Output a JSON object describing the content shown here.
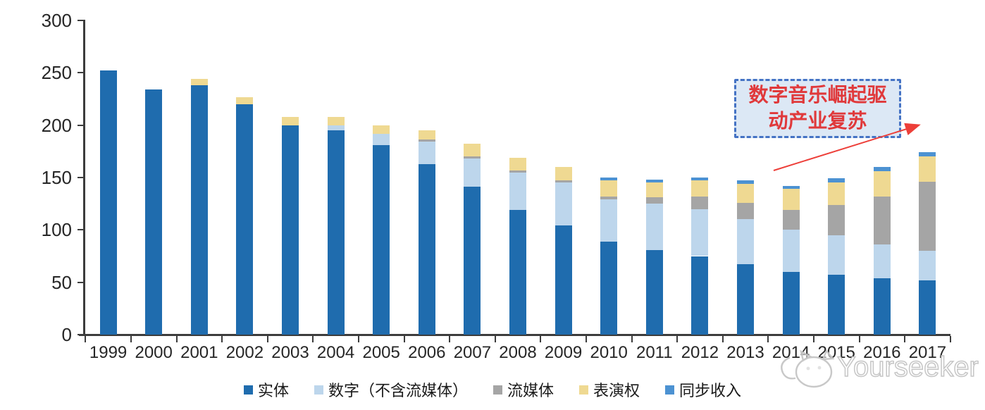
{
  "chart_data": {
    "type": "bar",
    "stacked": true,
    "title": "",
    "xlabel": "",
    "ylabel": "",
    "categories": [
      "1999",
      "2000",
      "2001",
      "2002",
      "2003",
      "2004",
      "2005",
      "2006",
      "2007",
      "2008",
      "2009",
      "2010",
      "2011",
      "2012",
      "2013",
      "2014",
      "2015",
      "2016",
      "2017"
    ],
    "series": [
      {
        "name": "实体",
        "color": "#1F6CAE",
        "values": [
          252,
          234,
          238,
          220,
          200,
          195,
          181,
          163,
          141,
          119,
          104,
          89,
          81,
          75,
          67,
          60,
          57,
          54,
          52
        ]
      },
      {
        "name": "数字（不含流媒体）",
        "color": "#BDD6EC",
        "values": [
          0,
          0,
          0,
          0,
          0,
          5,
          11,
          21,
          27,
          36,
          41,
          40,
          44,
          45,
          43,
          40,
          38,
          32,
          28
        ]
      },
      {
        "name": "流媒体",
        "color": "#A5A5A5",
        "values": [
          0,
          0,
          0,
          0,
          0,
          0,
          0,
          2,
          2,
          2,
          2,
          3,
          6,
          12,
          16,
          19,
          29,
          46,
          66
        ]
      },
      {
        "name": "表演权",
        "color": "#EFD992",
        "values": [
          0,
          0,
          6,
          7,
          8,
          8,
          8,
          9,
          12,
          12,
          13,
          15,
          14,
          15,
          18,
          20,
          21,
          24,
          24
        ]
      },
      {
        "name": "同步收入",
        "color": "#4C92D2",
        "values": [
          0,
          0,
          0,
          0,
          0,
          0,
          0,
          0,
          0,
          0,
          0,
          3,
          3,
          3,
          3,
          3,
          4,
          4,
          4
        ]
      }
    ],
    "ylim": [
      0,
      300
    ],
    "yticks": [
      0,
      50,
      100,
      150,
      200,
      250,
      300
    ],
    "grid": false,
    "legend_position": "bottom"
  },
  "annotation": {
    "lines": [
      "数字音乐崛起驱",
      "动产业复苏"
    ],
    "text_color": "#E0393B",
    "box_fill": "#DCE8F5",
    "box_border_color": "#4472C4",
    "arrow_color": "#ED3F39"
  },
  "watermark": {
    "text": "Yourseeker",
    "logo_icon": "cat-logo-icon"
  },
  "colors": {
    "axis": "#3C3C3C",
    "tick_label": "#262626",
    "background": "#FFFFFF"
  }
}
